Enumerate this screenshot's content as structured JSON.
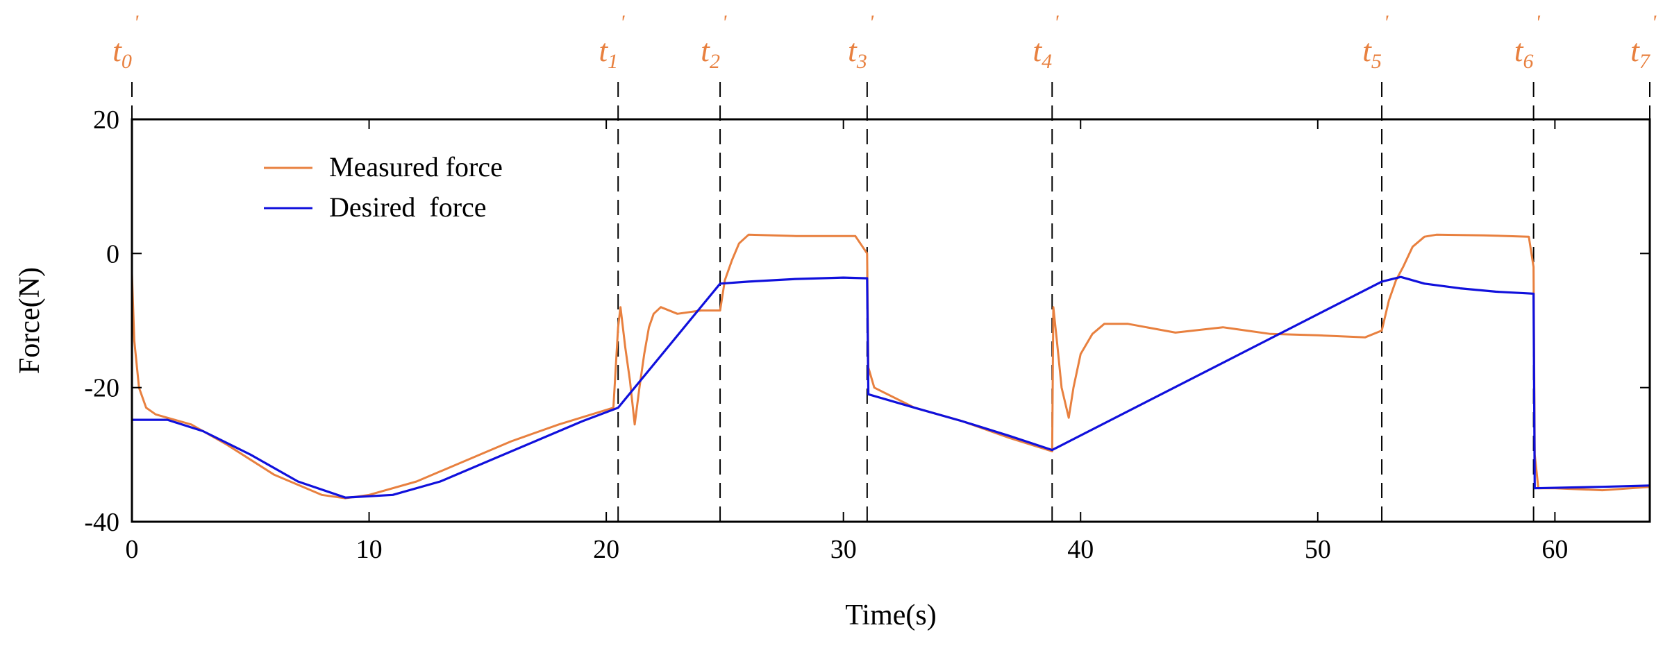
{
  "chart_data": {
    "type": "line",
    "title": "",
    "xlabel": "Time(s)",
    "ylabel": "Force(N)",
    "xlim": [
      0,
      64
    ],
    "ylim": [
      -40,
      20
    ],
    "xticks": [
      0,
      10,
      20,
      30,
      40,
      50,
      60
    ],
    "xtick_labels": [
      "0",
      "10",
      "20",
      "30",
      "40",
      "50",
      "60"
    ],
    "yticks": [
      -40,
      -20,
      0,
      20
    ],
    "ytick_labels": [
      "-40",
      "-20",
      "0",
      "20"
    ],
    "grid": false,
    "legend_position": "top-left",
    "colors": {
      "measured": "#e8803f",
      "desired": "#1010dc",
      "phase": "#e8803f"
    },
    "phase_markers": [
      {
        "x": 0.0,
        "label": "t",
        "sub": "0",
        "sup": "'"
      },
      {
        "x": 20.5,
        "label": "t",
        "sub": "1",
        "sup": "'"
      },
      {
        "x": 24.8,
        "label": "t",
        "sub": "2",
        "sup": "'"
      },
      {
        "x": 31.0,
        "label": "t",
        "sub": "3",
        "sup": "'"
      },
      {
        "x": 38.8,
        "label": "t",
        "sub": "4",
        "sup": "'"
      },
      {
        "x": 52.7,
        "label": "t",
        "sub": "5",
        "sup": "'"
      },
      {
        "x": 59.1,
        "label": "t",
        "sub": "6",
        "sup": "'"
      },
      {
        "x": 64.0,
        "label": "t",
        "sub": "7",
        "sup": "'"
      }
    ],
    "series": [
      {
        "name": "Measured force",
        "color": "#e8803f",
        "points": [
          [
            0.0,
            -3
          ],
          [
            0.1,
            -13
          ],
          [
            0.3,
            -20
          ],
          [
            0.6,
            -23
          ],
          [
            1.0,
            -24
          ],
          [
            1.5,
            -24.5
          ],
          [
            2.5,
            -25.5
          ],
          [
            4,
            -28.5
          ],
          [
            6,
            -33
          ],
          [
            8,
            -36
          ],
          [
            9,
            -36.5
          ],
          [
            10,
            -36
          ],
          [
            12,
            -34
          ],
          [
            14,
            -31
          ],
          [
            16,
            -28
          ],
          [
            18,
            -25.5
          ],
          [
            20.3,
            -23
          ],
          [
            20.5,
            -11
          ],
          [
            20.6,
            -8
          ],
          [
            20.8,
            -14
          ],
          [
            21.0,
            -19
          ],
          [
            21.2,
            -25.5
          ],
          [
            21.4,
            -20
          ],
          [
            21.6,
            -15
          ],
          [
            21.8,
            -11
          ],
          [
            22.0,
            -9
          ],
          [
            22.3,
            -8
          ],
          [
            23,
            -9
          ],
          [
            24,
            -8.5
          ],
          [
            24.8,
            -8.5
          ],
          [
            25.0,
            -4
          ],
          [
            25.3,
            -1
          ],
          [
            25.6,
            1.5
          ],
          [
            26,
            2.8
          ],
          [
            28,
            2.6
          ],
          [
            30.5,
            2.6
          ],
          [
            31.0,
            0
          ],
          [
            31.05,
            -17
          ],
          [
            31.3,
            -20
          ],
          [
            33,
            -23
          ],
          [
            35,
            -25
          ],
          [
            37,
            -27.5
          ],
          [
            38.8,
            -29.5
          ],
          [
            38.85,
            -8
          ],
          [
            39.0,
            -13
          ],
          [
            39.2,
            -20
          ],
          [
            39.5,
            -24.5
          ],
          [
            39.7,
            -20
          ],
          [
            40,
            -15
          ],
          [
            40.5,
            -12
          ],
          [
            41,
            -10.5
          ],
          [
            42,
            -10.5
          ],
          [
            44,
            -11.8
          ],
          [
            46,
            -11
          ],
          [
            48,
            -12
          ],
          [
            50,
            -12.2
          ],
          [
            52,
            -12.5
          ],
          [
            52.7,
            -11.5
          ],
          [
            53,
            -7
          ],
          [
            53.3,
            -4
          ],
          [
            53.6,
            -2
          ],
          [
            54,
            1
          ],
          [
            54.5,
            2.5
          ],
          [
            55,
            2.8
          ],
          [
            57,
            2.7
          ],
          [
            58.9,
            2.5
          ],
          [
            59.1,
            -2
          ],
          [
            59.15,
            -30
          ],
          [
            59.3,
            -35
          ],
          [
            60,
            -35
          ],
          [
            62,
            -35.3
          ],
          [
            64,
            -34.8
          ]
        ]
      },
      {
        "name": "Desired  force",
        "color": "#1010dc",
        "points": [
          [
            0.0,
            -24.8
          ],
          [
            1.5,
            -24.8
          ],
          [
            3,
            -26.5
          ],
          [
            5,
            -30
          ],
          [
            7,
            -34
          ],
          [
            9,
            -36.4
          ],
          [
            11,
            -36
          ],
          [
            13,
            -34
          ],
          [
            15,
            -31
          ],
          [
            17,
            -28
          ],
          [
            19,
            -25
          ],
          [
            20.5,
            -23
          ],
          [
            24.8,
            -4.5
          ],
          [
            26,
            -4.2
          ],
          [
            28,
            -3.8
          ],
          [
            30,
            -3.6
          ],
          [
            31.0,
            -3.7
          ],
          [
            31.05,
            -21
          ],
          [
            33,
            -23
          ],
          [
            35,
            -25
          ],
          [
            37,
            -27.2
          ],
          [
            38.8,
            -29.3
          ],
          [
            52.7,
            -4.2
          ],
          [
            53.5,
            -3.5
          ],
          [
            54.5,
            -4.5
          ],
          [
            56,
            -5.2
          ],
          [
            57.5,
            -5.7
          ],
          [
            59.1,
            -6.0
          ],
          [
            59.15,
            -35
          ],
          [
            62,
            -34.8
          ],
          [
            64,
            -34.6
          ]
        ]
      }
    ],
    "legend": [
      "Measured force",
      "Desired  force"
    ]
  }
}
